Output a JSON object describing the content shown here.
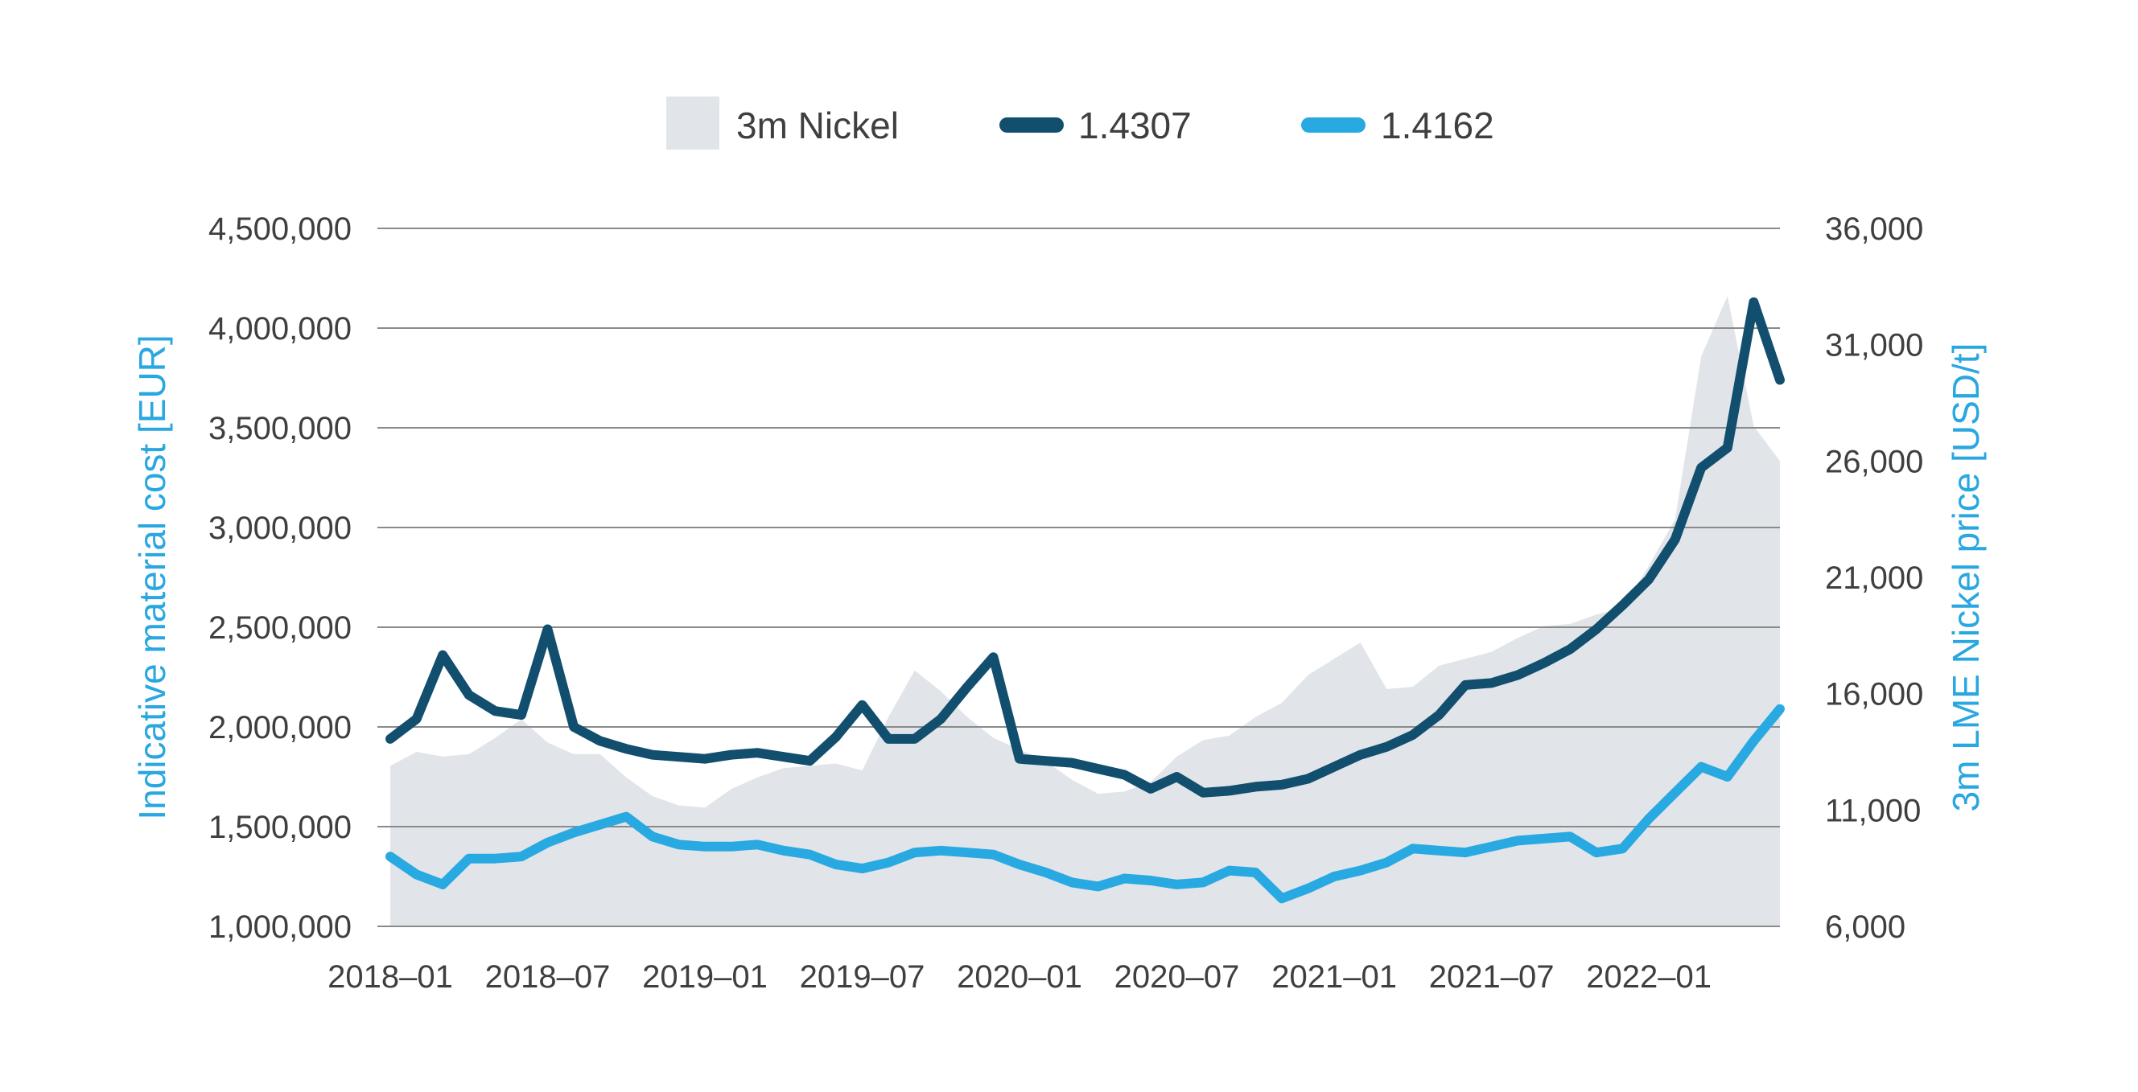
{
  "page": {
    "background": "#FFFFFF"
  },
  "legend": {
    "position": "top-center",
    "items": [
      {
        "label": "3m Nickel",
        "swatch": "area-square",
        "color": "#E1E5E9"
      },
      {
        "label": "1.4307",
        "swatch": "line-pill",
        "color": "#124F6E"
      },
      {
        "label": "1.4162",
        "swatch": "line-pill",
        "color": "#29A9E1"
      }
    ]
  },
  "chart_data": {
    "type": "combo-line-area",
    "title": "",
    "x": [
      "2018-01",
      "2018-02",
      "2018-03",
      "2018-04",
      "2018-05",
      "2018-06",
      "2018-07",
      "2018-08",
      "2018-09",
      "2018-10",
      "2018-11",
      "2018-12",
      "2019-01",
      "2019-02",
      "2019-03",
      "2019-04",
      "2019-05",
      "2019-06",
      "2019-07",
      "2019-08",
      "2019-09",
      "2019-10",
      "2019-11",
      "2019-12",
      "2020-01",
      "2020-02",
      "2020-03",
      "2020-04",
      "2020-05",
      "2020-06",
      "2020-07",
      "2020-08",
      "2020-09",
      "2020-10",
      "2020-11",
      "2020-12",
      "2021-01",
      "2021-02",
      "2021-03",
      "2021-04",
      "2021-05",
      "2021-06",
      "2021-07",
      "2021-08",
      "2021-09",
      "2021-10",
      "2021-11",
      "2021-12",
      "2022-01",
      "2022-02",
      "2022-03",
      "2022-04",
      "2022-05",
      "2022-06"
    ],
    "x_tick_labels": [
      "2018–01",
      "2018–07",
      "2019–01",
      "2019–07",
      "2020–01",
      "2020–07",
      "2021–01",
      "2021–07",
      "2022–01"
    ],
    "x_tick_indices": [
      0,
      6,
      12,
      18,
      24,
      30,
      36,
      42,
      48
    ],
    "left_axis": {
      "title": "Indicative material cost [EUR]",
      "min": 1000000,
      "max": 4500000,
      "tick_values": [
        4500000,
        4000000,
        3500000,
        3000000,
        2500000,
        2000000,
        1500000,
        1000000
      ],
      "tick_labels": [
        "4,500,000",
        "4,000,000",
        "3,500,000",
        "3,000,000",
        "2,500,000",
        "2,000,000",
        "1,500,000",
        "1,000,000"
      ],
      "title_color": "#29A7E0",
      "tick_color": "#3F3F3E"
    },
    "right_axis": {
      "title": "3m LME Nickel price [USD/t]",
      "min": 6000,
      "max": 36000,
      "tick_values": [
        36000,
        31000,
        26000,
        21000,
        16000,
        11000,
        6000
      ],
      "tick_labels": [
        "36,000",
        "31,000",
        "26,000",
        "21,000",
        "16,000",
        "11,000",
        "6,000"
      ],
      "title_color": "#29A7E0",
      "tick_color": "#3F3F3E"
    },
    "grid": {
      "show": true,
      "color": "#8A8A8A",
      "width": 2
    },
    "legend_position": "top-center",
    "series": [
      {
        "name": "3m Nickel",
        "type": "area",
        "axis": "right",
        "color": "#E1E5E9",
        "values": [
          12900,
          13500,
          13300,
          13400,
          14100,
          14900,
          13900,
          13400,
          13400,
          12400,
          11600,
          11200,
          11100,
          11900,
          12400,
          12800,
          12900,
          13000,
          12700,
          15000,
          17000,
          16100,
          15000,
          14100,
          13600,
          13100,
          12300,
          11700,
          11800,
          12200,
          13300,
          14000,
          14200,
          15000,
          15600,
          16800,
          17500,
          18200,
          16200,
          16300,
          17200,
          17500,
          17800,
          18400,
          18900,
          19000,
          19400,
          19700,
          21500,
          23500,
          30500,
          33100,
          27500,
          26000
        ]
      },
      {
        "name": "1.4307",
        "type": "line",
        "axis": "left",
        "color": "#124F6E",
        "stroke_width": 12,
        "values": [
          1940000,
          2040000,
          2360000,
          2160000,
          2080000,
          2060000,
          2490000,
          2000000,
          1930000,
          1890000,
          1860000,
          1850000,
          1840000,
          1860000,
          1870000,
          1850000,
          1830000,
          1950000,
          2110000,
          1940000,
          1940000,
          2040000,
          2200000,
          2350000,
          1840000,
          1830000,
          1820000,
          1790000,
          1760000,
          1690000,
          1750000,
          1670000,
          1680000,
          1700000,
          1710000,
          1740000,
          1800000,
          1860000,
          1900000,
          1960000,
          2060000,
          2210000,
          2220000,
          2260000,
          2320000,
          2390000,
          2490000,
          2610000,
          2740000,
          2940000,
          3300000,
          3400000,
          4130000,
          3740000
        ]
      },
      {
        "name": "1.4162",
        "type": "line",
        "axis": "left",
        "color": "#29A9E1",
        "stroke_width": 12,
        "values": [
          1350000,
          1260000,
          1210000,
          1340000,
          1340000,
          1350000,
          1420000,
          1470000,
          1510000,
          1550000,
          1450000,
          1410000,
          1400000,
          1400000,
          1410000,
          1380000,
          1360000,
          1310000,
          1290000,
          1320000,
          1370000,
          1380000,
          1370000,
          1360000,
          1310000,
          1270000,
          1220000,
          1200000,
          1240000,
          1230000,
          1210000,
          1220000,
          1280000,
          1270000,
          1140000,
          1190000,
          1250000,
          1280000,
          1320000,
          1390000,
          1380000,
          1370000,
          1400000,
          1430000,
          1440000,
          1450000,
          1370000,
          1390000,
          1540000,
          1670000,
          1800000,
          1750000,
          1930000,
          2090000
        ]
      }
    ],
    "plot_geometry": {
      "x0": 469,
      "x1": 2212,
      "y_top": 284,
      "y_bottom": 1152,
      "first_point_x": 485
    }
  }
}
